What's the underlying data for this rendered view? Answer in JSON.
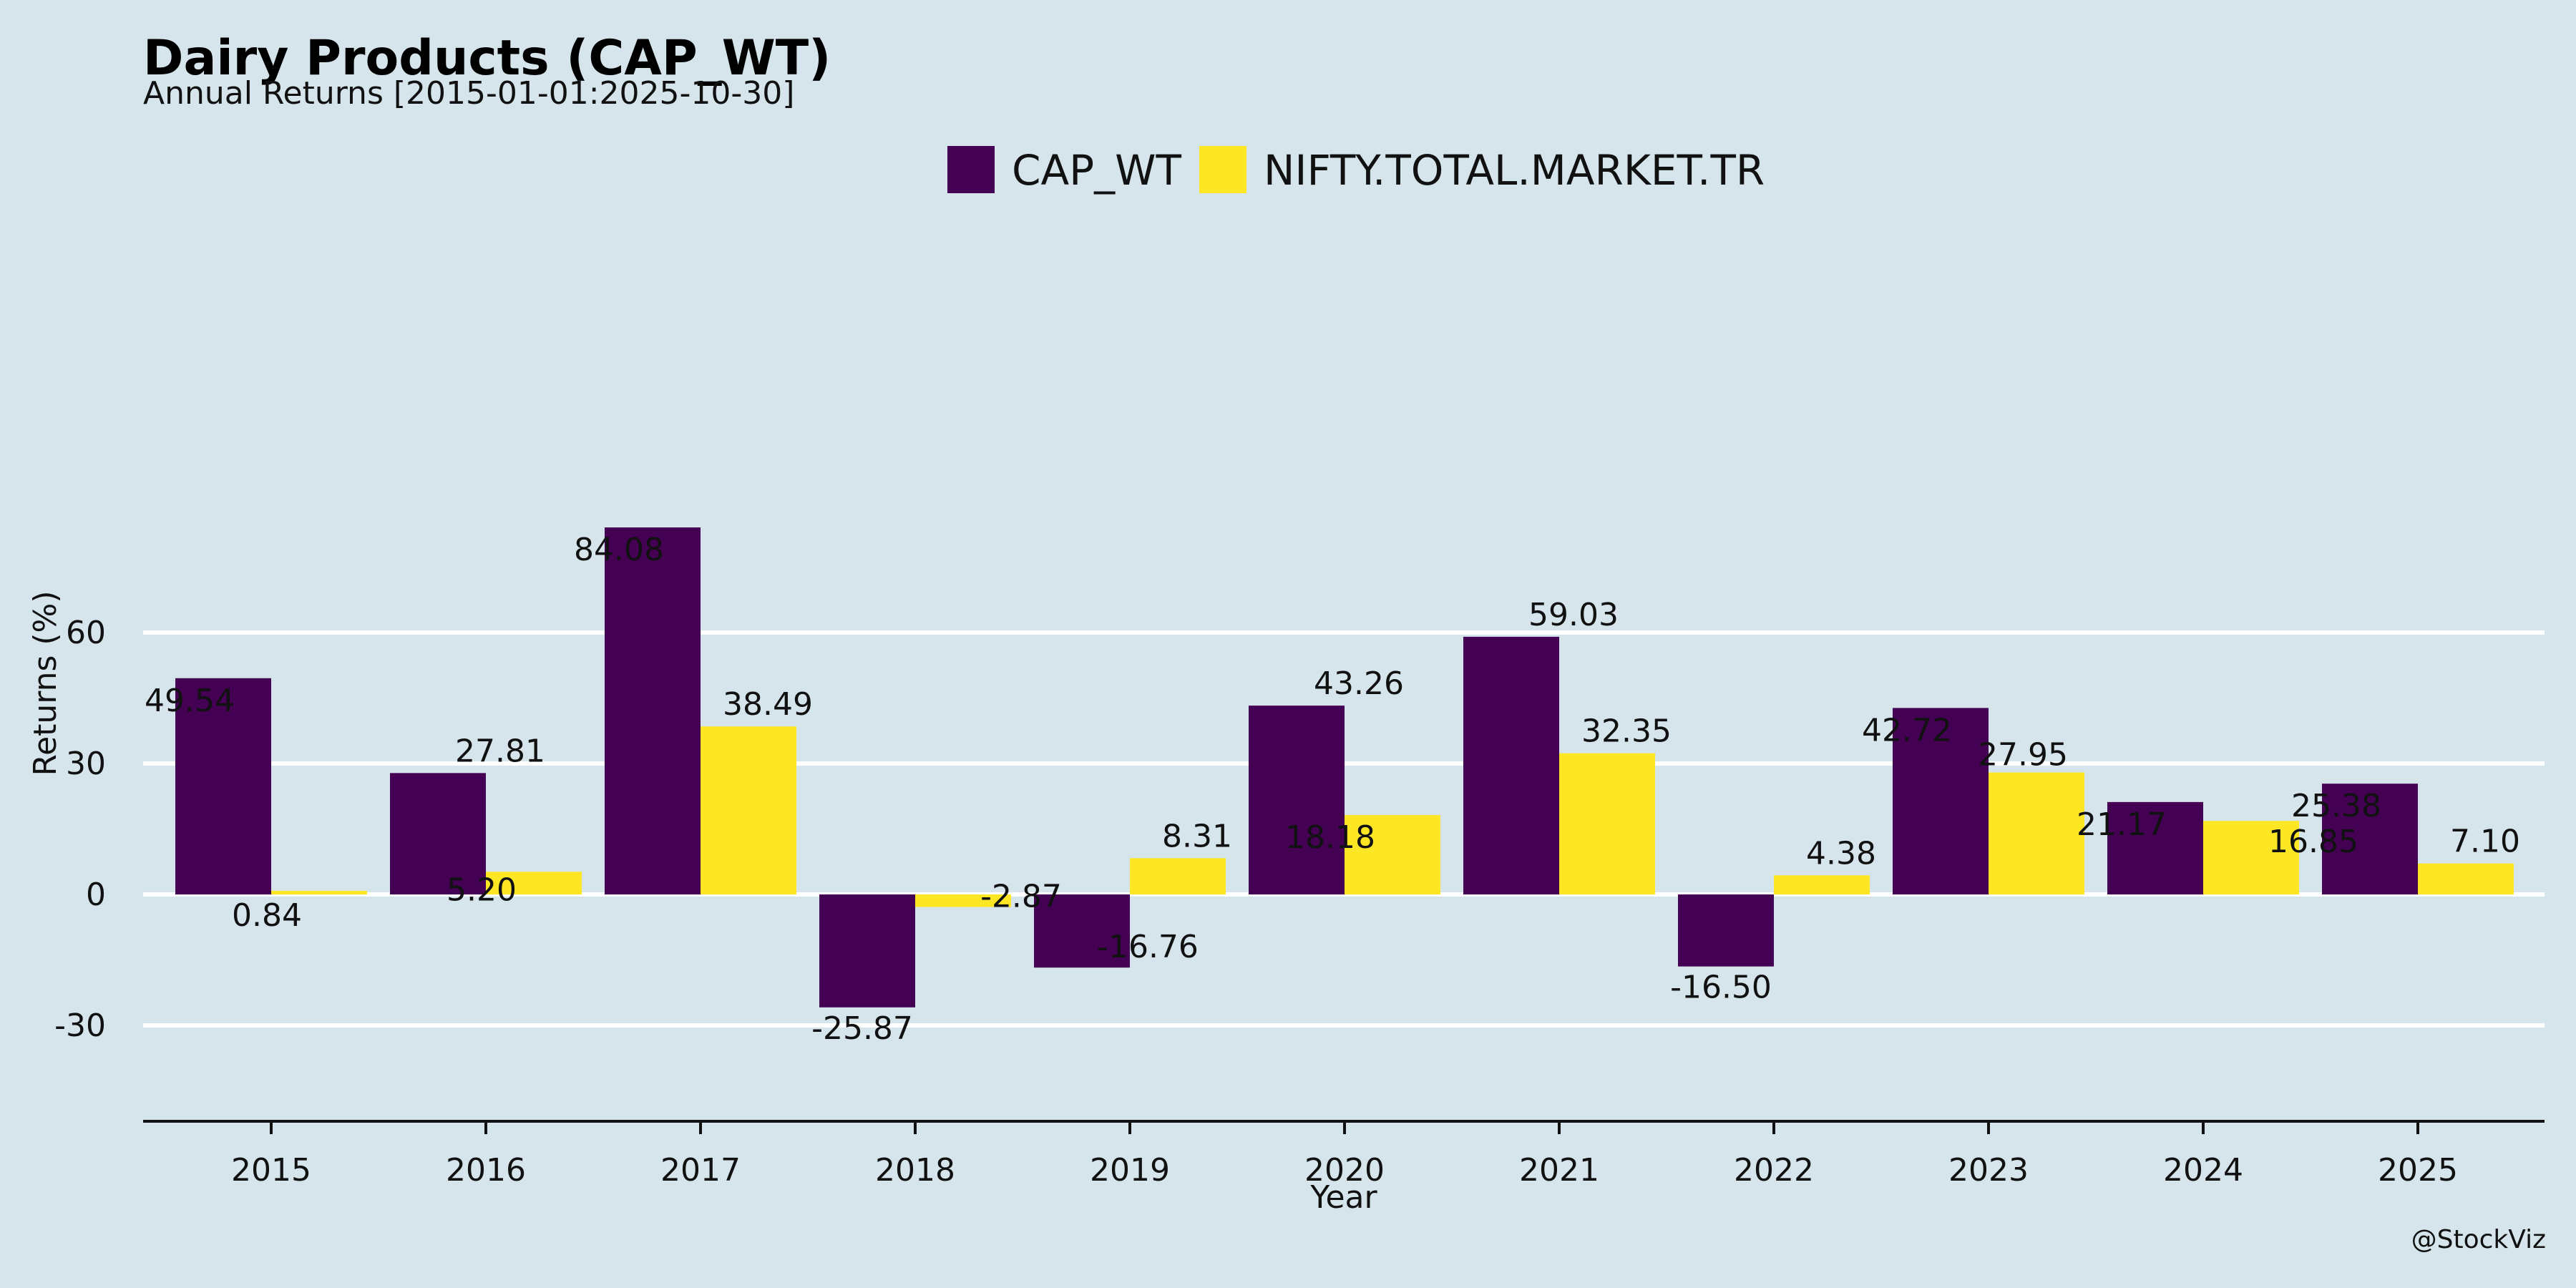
{
  "chart_data": {
    "type": "bar",
    "title": "Dairy Products (CAP_WT)",
    "subtitle": "Annual Returns [2015-01-01:2025-10-30]",
    "xlabel": "Year",
    "ylabel": "Returns (%)",
    "categories": [
      "2015",
      "2016",
      "2017",
      "2018",
      "2019",
      "2020",
      "2021",
      "2022",
      "2023",
      "2024",
      "2025"
    ],
    "series": [
      {
        "name": "CAP_WT",
        "color": "#440154",
        "values": [
          49.54,
          27.81,
          84.08,
          -25.87,
          -16.76,
          43.26,
          59.03,
          -16.5,
          42.72,
          21.17,
          25.38
        ],
        "labels": [
          "49.54",
          "27.81",
          "84.08",
          "-25.87",
          "-16.76",
          "43.26",
          "59.03",
          "-16.50",
          "42.72",
          "21.17",
          "25.38"
        ]
      },
      {
        "name": "NIFTY.TOTAL.MARKET.TR",
        "color": "#fde725",
        "values": [
          0.84,
          5.2,
          38.49,
          -2.87,
          8.31,
          18.18,
          32.35,
          4.38,
          27.95,
          16.85,
          7.1
        ],
        "labels": [
          "0.84",
          "5.20",
          "38.49",
          "-2.87",
          "8.31",
          "18.18",
          "32.35",
          "4.38",
          "27.95",
          "16.85",
          "7.10"
        ]
      }
    ],
    "yticks": [
      -30,
      0,
      30,
      60
    ],
    "ytick_labels": [
      "-30",
      "0",
      "30",
      "60"
    ],
    "ylim": [
      -31.5,
      90
    ],
    "grid": true,
    "legend_position": "top-center",
    "credit": "@StockViz"
  }
}
